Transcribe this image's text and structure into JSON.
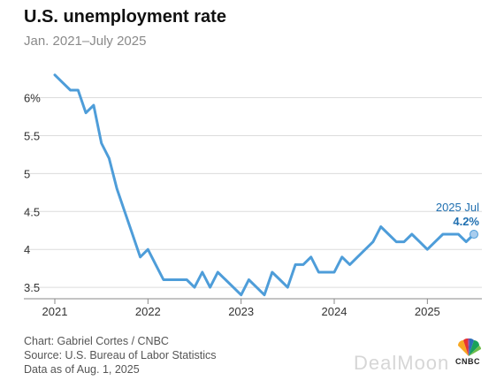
{
  "header": {
    "title": "U.S. unemployment rate",
    "subtitle": "Jan. 2021–July 2025"
  },
  "chart_data": {
    "type": "line",
    "title": "U.S. unemployment rate",
    "subtitle": "Jan. 2021–July 2025",
    "xlabel": "",
    "ylabel": "",
    "x_ticks": [
      "2021",
      "2022",
      "2023",
      "2024",
      "2025"
    ],
    "y_ticks": [
      "3.5",
      "4",
      "4.5",
      "5",
      "5.5",
      "6%"
    ],
    "ylim": [
      3.35,
      6.35
    ],
    "grid": "horizontal",
    "line_color": "#4e9dd9",
    "series": [
      {
        "x": [
          "2021-01",
          "2021-02",
          "2021-03",
          "2021-04",
          "2021-05",
          "2021-06",
          "2021-07",
          "2021-08",
          "2021-09",
          "2021-10",
          "2021-11",
          "2021-12",
          "2022-01",
          "2022-02",
          "2022-03",
          "2022-04",
          "2022-05",
          "2022-06",
          "2022-07",
          "2022-08",
          "2022-09",
          "2022-10",
          "2022-11",
          "2022-12",
          "2023-01",
          "2023-02",
          "2023-03",
          "2023-04",
          "2023-05",
          "2023-06",
          "2023-07",
          "2023-08",
          "2023-09",
          "2023-10",
          "2023-11",
          "2023-12",
          "2024-01",
          "2024-02",
          "2024-03",
          "2024-04",
          "2024-05",
          "2024-06",
          "2024-07",
          "2024-08",
          "2024-09",
          "2024-10",
          "2024-11",
          "2024-12",
          "2025-01",
          "2025-02",
          "2025-03",
          "2025-04",
          "2025-05",
          "2025-06",
          "2025-07"
        ],
        "values": [
          6.3,
          6.2,
          6.1,
          6.1,
          5.8,
          5.9,
          5.4,
          5.2,
          4.8,
          4.5,
          4.2,
          3.9,
          4.0,
          3.8,
          3.6,
          3.6,
          3.6,
          3.6,
          3.5,
          3.7,
          3.5,
          3.7,
          3.6,
          3.5,
          3.4,
          3.6,
          3.5,
          3.4,
          3.7,
          3.6,
          3.5,
          3.8,
          3.8,
          3.9,
          3.7,
          3.7,
          3.7,
          3.9,
          3.8,
          3.9,
          4.0,
          4.1,
          4.3,
          4.2,
          4.1,
          4.1,
          4.2,
          4.1,
          4.0,
          4.1,
          4.2,
          4.2,
          4.2,
          4.1,
          4.2
        ]
      }
    ],
    "annotation": {
      "label": "2025 Jul",
      "value": "4.2%"
    }
  },
  "footer": {
    "credit": "Chart: Gabriel Cortes / CNBC",
    "source": "Source: U.S. Bureau of Labor Statistics",
    "data_as_of": "Data as of Aug. 1, 2025",
    "logo_text": "CNBC",
    "watermark": "DealMoon"
  }
}
